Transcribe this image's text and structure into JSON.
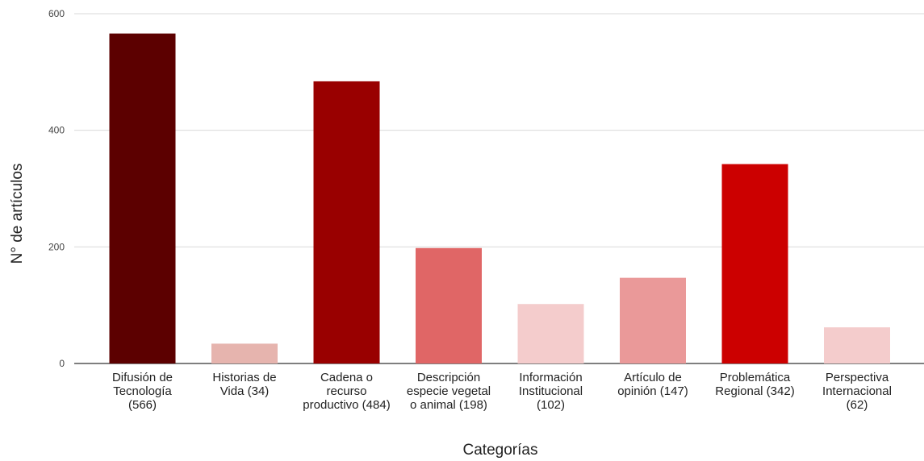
{
  "chart_data": {
    "type": "bar",
    "title": "",
    "xlabel": "Categorías",
    "ylabel": "N° de artículos",
    "ylim": [
      0,
      600
    ],
    "yticks": [
      0,
      200,
      400,
      600
    ],
    "grid": true,
    "legend": "none",
    "categories": [
      [
        "Difusión de",
        "Tecnología",
        "(566)"
      ],
      [
        "Historias de",
        "Vida (34)"
      ],
      [
        "Cadena o",
        "recurso",
        "productivo (484)"
      ],
      [
        "Descripción",
        "especie vegetal",
        "o animal (198)"
      ],
      [
        "Información",
        "Institucional",
        "(102)"
      ],
      [
        "Artículo de",
        "opinión (147)"
      ],
      [
        "Problemática",
        "Regional (342)"
      ],
      [
        "Perspectiva",
        "Internacional",
        "(62)"
      ]
    ],
    "values": [
      566,
      34,
      484,
      198,
      102,
      147,
      342,
      62
    ],
    "colors": [
      "#5c0000",
      "#e6b4ae",
      "#990000",
      "#e06666",
      "#f4cccc",
      "#ea9999",
      "#cc0000",
      "#f4cccc"
    ]
  }
}
